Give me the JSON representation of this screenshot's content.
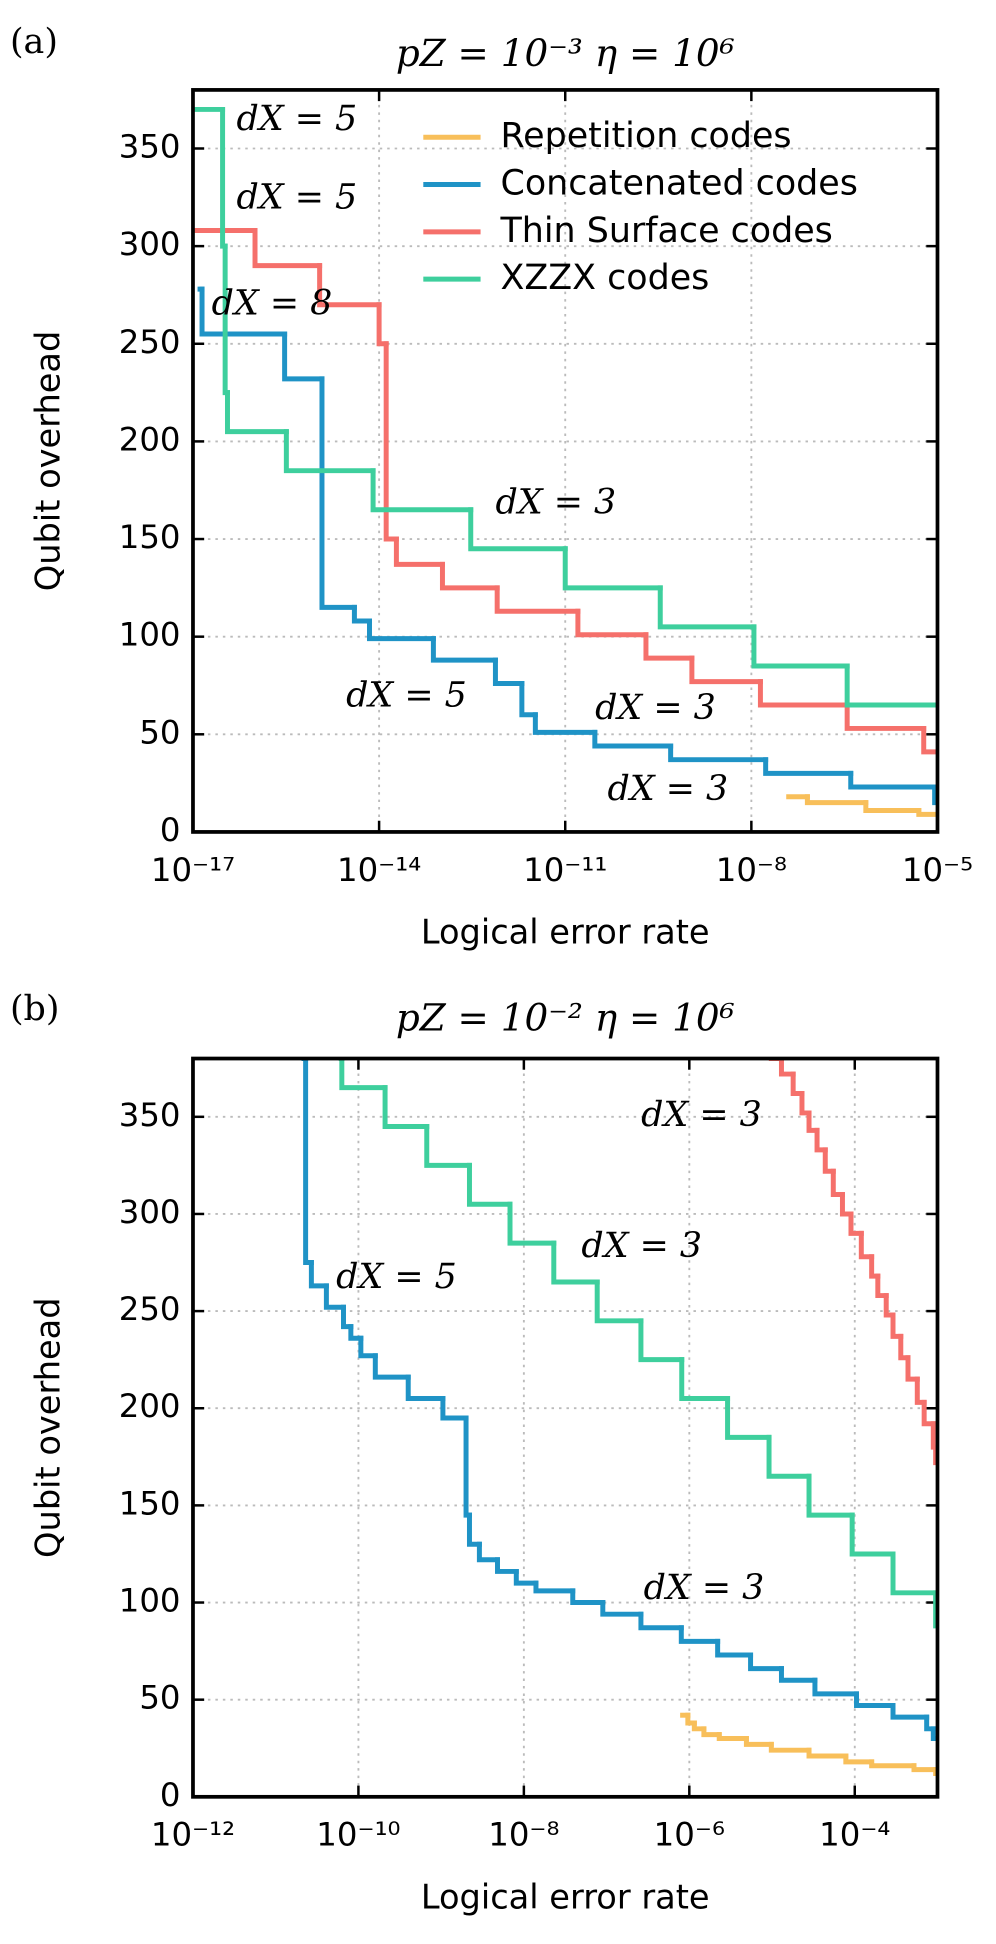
{
  "chart_data": [
    {
      "type": "line",
      "panel_label": "(a)",
      "title": "pZ = 10⁻³   η = 10⁶",
      "x_label": "Logical error rate",
      "y_label": "Qubit overhead",
      "xscale": "log",
      "drawstyle": "steps-post",
      "grid": true,
      "legend": "upper right",
      "xlim": [
        1e-17,
        1e-05
      ],
      "xticks": [
        {
          "value": 1e-17,
          "label": "10⁻¹⁷"
        },
        {
          "value": 1e-14,
          "label": "10⁻¹⁴"
        },
        {
          "value": 1e-11,
          "label": "10⁻¹¹"
        },
        {
          "value": 1e-08,
          "label": "10⁻⁸"
        },
        {
          "value": 1e-05,
          "label": "10⁻⁵"
        }
      ],
      "ylim": [
        0,
        380
      ],
      "yticks": [
        0,
        50,
        100,
        150,
        200,
        250,
        300,
        350
      ],
      "series": [
        {
          "name": "Repetition codes",
          "color": "#f8bf5a",
          "x": [
            4e-08,
            8e-08,
            7e-07,
            5e-06
          ],
          "values": [
            18,
            15,
            11,
            9
          ]
        },
        {
          "name": "Concatenated codes",
          "color": "#1f93c6",
          "x": [
            1.3e-17,
            1.4e-17,
            3e-16,
            1.2e-15,
            4e-15,
            7e-15,
            7.5e-14,
            7.5e-13,
            2e-12,
            3.3e-12,
            3e-11,
            5e-10,
            1.7e-08,
            4e-07,
            9e-06
          ],
          "values": [
            278,
            255,
            232,
            115,
            108,
            99,
            88,
            76,
            60,
            51,
            44,
            37,
            30,
            23,
            15
          ]
        },
        {
          "name": "Thin Surface codes",
          "color": "#f5706b",
          "x": [
            1e-17,
            1e-16,
            1.1e-15,
            1e-14,
            1.3e-14,
            1.9e-14,
            1.05e-13,
            8e-13,
            1.6e-11,
            2e-10,
            1.1e-09,
            1.4e-08,
            3.5e-07,
            6e-06
          ],
          "values": [
            308,
            290,
            270,
            250,
            150,
            137,
            125,
            113,
            101,
            89,
            77,
            65,
            53,
            41
          ]
        },
        {
          "name": "XZZX codes",
          "color": "#3ecf9d",
          "x": [
            1e-17,
            3e-17,
            3.3e-17,
            3.6e-17,
            3.2e-16,
            8e-15,
            3e-13,
            1e-11,
            3.4e-10,
            1.1e-08,
            3.5e-07
          ],
          "values": [
            370,
            300,
            225,
            205,
            185,
            165,
            145,
            125,
            105,
            85,
            65
          ]
        }
      ],
      "annotations": [
        {
          "text": "dX = 5",
          "color": "#3ecf9d"
        },
        {
          "text": "dX = 5",
          "color": "#f5706b"
        },
        {
          "text": "dX = 8",
          "color": "#1f93c6"
        },
        {
          "text": "dX = 3",
          "color": "#3ecf9d"
        },
        {
          "text": "dX = 5",
          "color": "#1f93c6"
        },
        {
          "text": "dX = 3",
          "color": "#f5706b"
        },
        {
          "text": "dX = 3",
          "color": "#1f93c6"
        }
      ]
    },
    {
      "type": "line",
      "panel_label": "(b)",
      "title": "pZ = 10⁻²   η = 10⁶",
      "x_label": "Logical error rate",
      "y_label": "Qubit overhead",
      "xscale": "log",
      "drawstyle": "steps-post",
      "grid": true,
      "xlim": [
        1e-12,
        0.001
      ],
      "xticks": [
        {
          "value": 1e-12,
          "label": "10⁻¹²"
        },
        {
          "value": 1e-10,
          "label": "10⁻¹⁰"
        },
        {
          "value": 1e-08,
          "label": "10⁻⁸"
        },
        {
          "value": 1e-06,
          "label": "10⁻⁶"
        },
        {
          "value": 0.0001,
          "label": "10⁻⁴"
        }
      ],
      "ylim": [
        0,
        380
      ],
      "yticks": [
        0,
        50,
        100,
        150,
        200,
        250,
        300,
        350
      ],
      "series": [
        {
          "color": "#f8bf5a",
          "x": [
            8.3e-07,
            9.6e-07,
            1.15e-06,
            1.5e-06,
            2.3e-06,
            4.9e-06,
            9.8e-06,
            2.8e-05,
            7.8e-05,
            0.00016,
            0.00052,
            0.00095
          ],
          "values": [
            42,
            38,
            35,
            32,
            30,
            27,
            24,
            21,
            18,
            16,
            14,
            12
          ]
        },
        {
          "color": "#1f93c6",
          "x": [
            2.2e-11,
            2.3e-11,
            2.7e-11,
            4.1e-11,
            6.6e-11,
            8.1e-11,
            1.07e-10,
            1.6e-10,
            4e-10,
            1.05e-09,
            2e-09,
            2.2e-09,
            2.9e-09,
            4.8e-09,
            8.1e-09,
            1.4e-08,
            3.9e-08,
            9e-08,
            2.6e-07,
            8e-07,
            2.2e-06,
            5.5e-06,
            1.3e-05,
            3.3e-05,
            0.000105,
            0.00029,
            0.00074,
            0.00089
          ],
          "values": [
            380,
            275,
            263,
            252,
            242,
            236,
            227,
            216,
            205,
            195,
            145,
            130,
            122,
            116,
            110,
            106,
            100,
            94,
            87,
            80,
            73,
            66,
            60,
            53,
            47,
            41,
            35,
            30
          ]
        },
        {
          "color": "#f5706b",
          "x": [
            9.8e-06,
            1.3e-05,
            1.8e-05,
            2.3e-05,
            2.8e-05,
            3.5e-05,
            4.4e-05,
            5.5e-05,
            7.1e-05,
            9e-05,
            0.00012,
            0.00016,
            0.00019,
            0.00024,
            0.00029,
            0.00036,
            0.00044,
            0.00057,
            0.00069,
            0.00089,
            0.00095
          ],
          "values": [
            380,
            372,
            362,
            352,
            343,
            333,
            322,
            310,
            300,
            290,
            278,
            268,
            258,
            248,
            237,
            226,
            215,
            203,
            192,
            180,
            172
          ]
        },
        {
          "color": "#3ecf9d",
          "x": [
            6.2e-11,
            6.3e-11,
            2.1e-10,
            6.7e-10,
            2.2e-09,
            6.8e-09,
            2.3e-08,
            7.7e-08,
            2.6e-07,
            8.1e-07,
            2.9e-06,
            9.2e-06,
            2.8e-05,
            9.3e-05,
            0.00029,
            0.00095
          ],
          "values": [
            380,
            365,
            345,
            325,
            305,
            285,
            265,
            245,
            225,
            205,
            185,
            165,
            145,
            125,
            105,
            88
          ]
        }
      ],
      "annotations": [
        {
          "text": "dX = 3",
          "color": "#f5706b"
        },
        {
          "text": "dX = 3",
          "color": "#3ecf9d"
        },
        {
          "text": "dX = 5",
          "color": "#1f93c6"
        },
        {
          "text": "dX = 3",
          "color": "#1f93c6"
        }
      ]
    }
  ]
}
